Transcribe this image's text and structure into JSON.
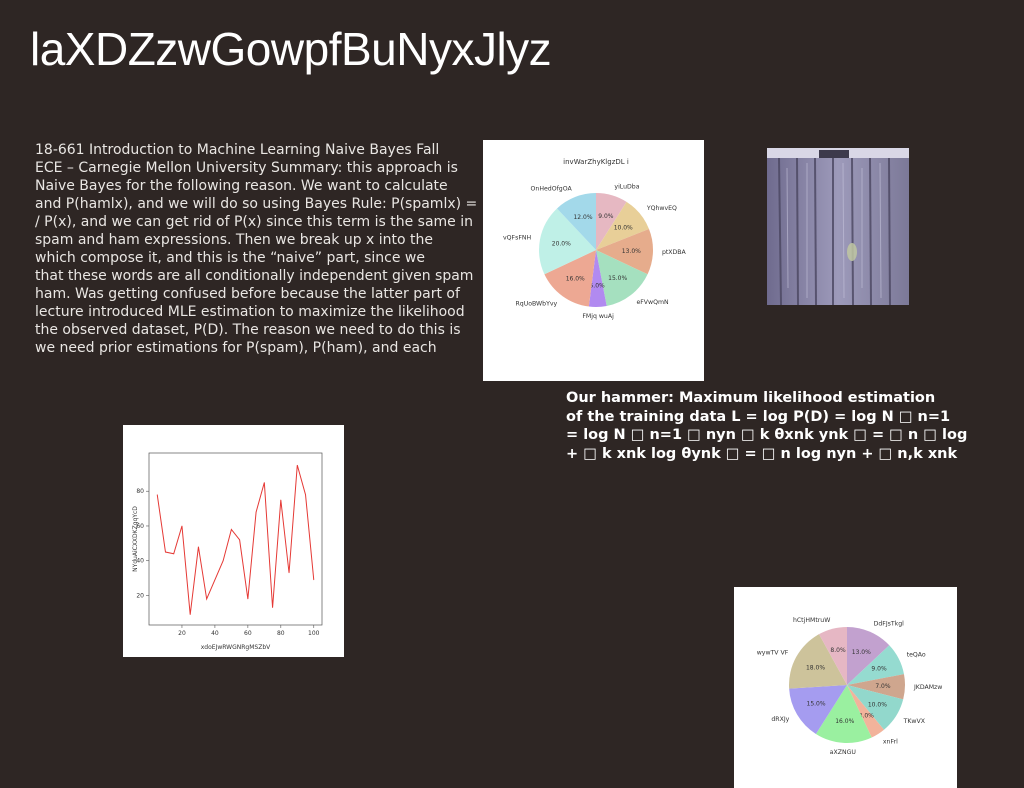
{
  "slide": {
    "title": "laXDZzwGowpfBuNyxJlyz",
    "body_lines": [
      "18-661 Introduction to Machine Learning Naive Bayes Fall",
      "ECE – Carnegie Mellon University Summary: this approach is",
      "Naive Bayes for the following reason. We want to calculate",
      "and P(hamlx), and we will do so using Bayes Rule: P(spamlx) =",
      "/ P(x), and we can get rid of P(x) since this term is the same in",
      "spam and ham expressions. Then we break up x into the",
      "which compose it, and this is the “naive” part, since we",
      "that these words are all conditionally independent given spam",
      "ham. Was getting confused before because the latter part of",
      "lecture introduced MLE estimation to maximize the likelihood",
      "the observed dataset, P(D). The reason we need to do this is",
      "we need prior estimations for P(spam), P(ham), and each"
    ],
    "formula_lines": [
      "Our hammer: Maximum likelihood estimation",
      "of the training data L = log P(D) = log N □ n=1",
      "= log N □ n=1 □ nyn □ k θxnk ynk □ = □ n □ log",
      "+ □ k xnk log θynk □ = □ n log nyn + □ n,k xnk"
    ],
    "photo": {
      "icon": "wooden-door-photo",
      "colors": [
        "#7f7c9e",
        "#a9a6c8",
        "#4e4a5e"
      ]
    }
  },
  "chart_data": [
    {
      "type": "pie",
      "title": "invWarZhyKlgzDL i",
      "labels": [
        "yiLuDba",
        "YQhwvEQ",
        "ptXDBA",
        "eFVwQmN",
        "FMjq wuAj",
        "RqUoBWbYvy",
        "vQFsFNH",
        "OnHedOfgOA"
      ],
      "values": [
        9.0,
        10.0,
        13.0,
        15.0,
        5.0,
        16.0,
        20.0,
        12.0
      ],
      "colors": [
        "#e6b8c2",
        "#e8cf98",
        "#e6ac8c",
        "#a5e0bf",
        "#b18af0",
        "#eda893",
        "#bff0e7",
        "#a3d9ea"
      ]
    },
    {
      "type": "line",
      "title": "",
      "xlabel": "xdoEJwRWGNRgMSZbV",
      "ylabel": "NYduAiCXXDKZgqYcD",
      "x": [
        5,
        10,
        15,
        20,
        25,
        30,
        35,
        45,
        50,
        55,
        60,
        65,
        70,
        75,
        80,
        85,
        90,
        95,
        100
      ],
      "y": [
        78,
        45,
        44,
        60,
        9,
        48,
        18,
        40,
        58,
        52,
        18,
        68,
        85,
        13,
        75,
        33,
        95,
        78,
        29
      ],
      "xlim": [
        0,
        105
      ],
      "ylim": [
        3,
        102
      ],
      "xticks": [
        20,
        40,
        60,
        80,
        100
      ],
      "yticks": [
        20,
        40,
        60,
        80
      ],
      "line_color": "#e53935"
    },
    {
      "type": "pie",
      "title": "",
      "labels": [
        "DdFJsTkgl",
        "teQAo",
        "JKDAMzw",
        "TKwVX",
        "xnFrl",
        "aXZNGU",
        "dRXJy",
        "wywTV VF",
        "hCtjHMtruW"
      ],
      "values": [
        13.0,
        9.0,
        7.0,
        10.0,
        4.0,
        16.0,
        15.0,
        18.0,
        8.0
      ],
      "colors": [
        "#c2a1cf",
        "#95dbd0",
        "#cfa68e",
        "#92d8cc",
        "#f2b39b",
        "#9af0a0",
        "#a59cf0",
        "#cdc39b",
        "#e6b7c4"
      ]
    }
  ]
}
